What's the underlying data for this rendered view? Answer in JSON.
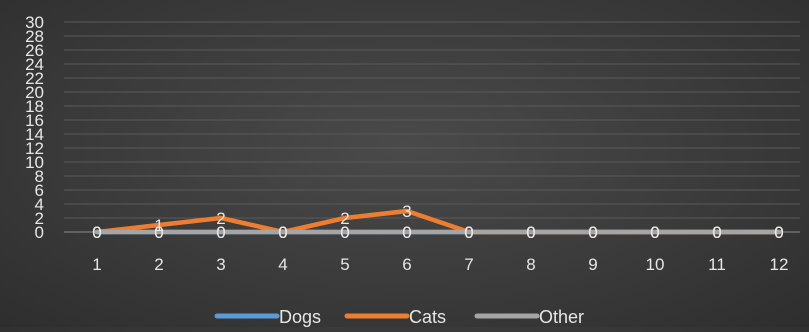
{
  "chart_data": {
    "type": "line",
    "categories": [
      "1",
      "2",
      "3",
      "4",
      "5",
      "6",
      "7",
      "8",
      "9",
      "10",
      "11",
      "12"
    ],
    "series": [
      {
        "name": "Dogs",
        "color": "#5b9bd5",
        "values": [
          0,
          0,
          0,
          0,
          0,
          0,
          0,
          0,
          0,
          0,
          0,
          0
        ]
      },
      {
        "name": "Cats",
        "color": "#ed7d31",
        "values": [
          0,
          1,
          2,
          0,
          2,
          3,
          0,
          0,
          0,
          0,
          0,
          0
        ]
      },
      {
        "name": "Other",
        "color": "#a5a5a5",
        "values": [
          0,
          0,
          0,
          0,
          0,
          0,
          0,
          0,
          0,
          0,
          0,
          0
        ]
      }
    ],
    "ylim": [
      0,
      30
    ],
    "yticks": [
      0,
      2,
      4,
      6,
      8,
      10,
      12,
      14,
      16,
      18,
      20,
      22,
      24,
      26,
      28,
      30
    ],
    "title": "",
    "xlabel": "",
    "ylabel": "",
    "grid": true,
    "legend_position": "bottom",
    "data_labels": true
  }
}
